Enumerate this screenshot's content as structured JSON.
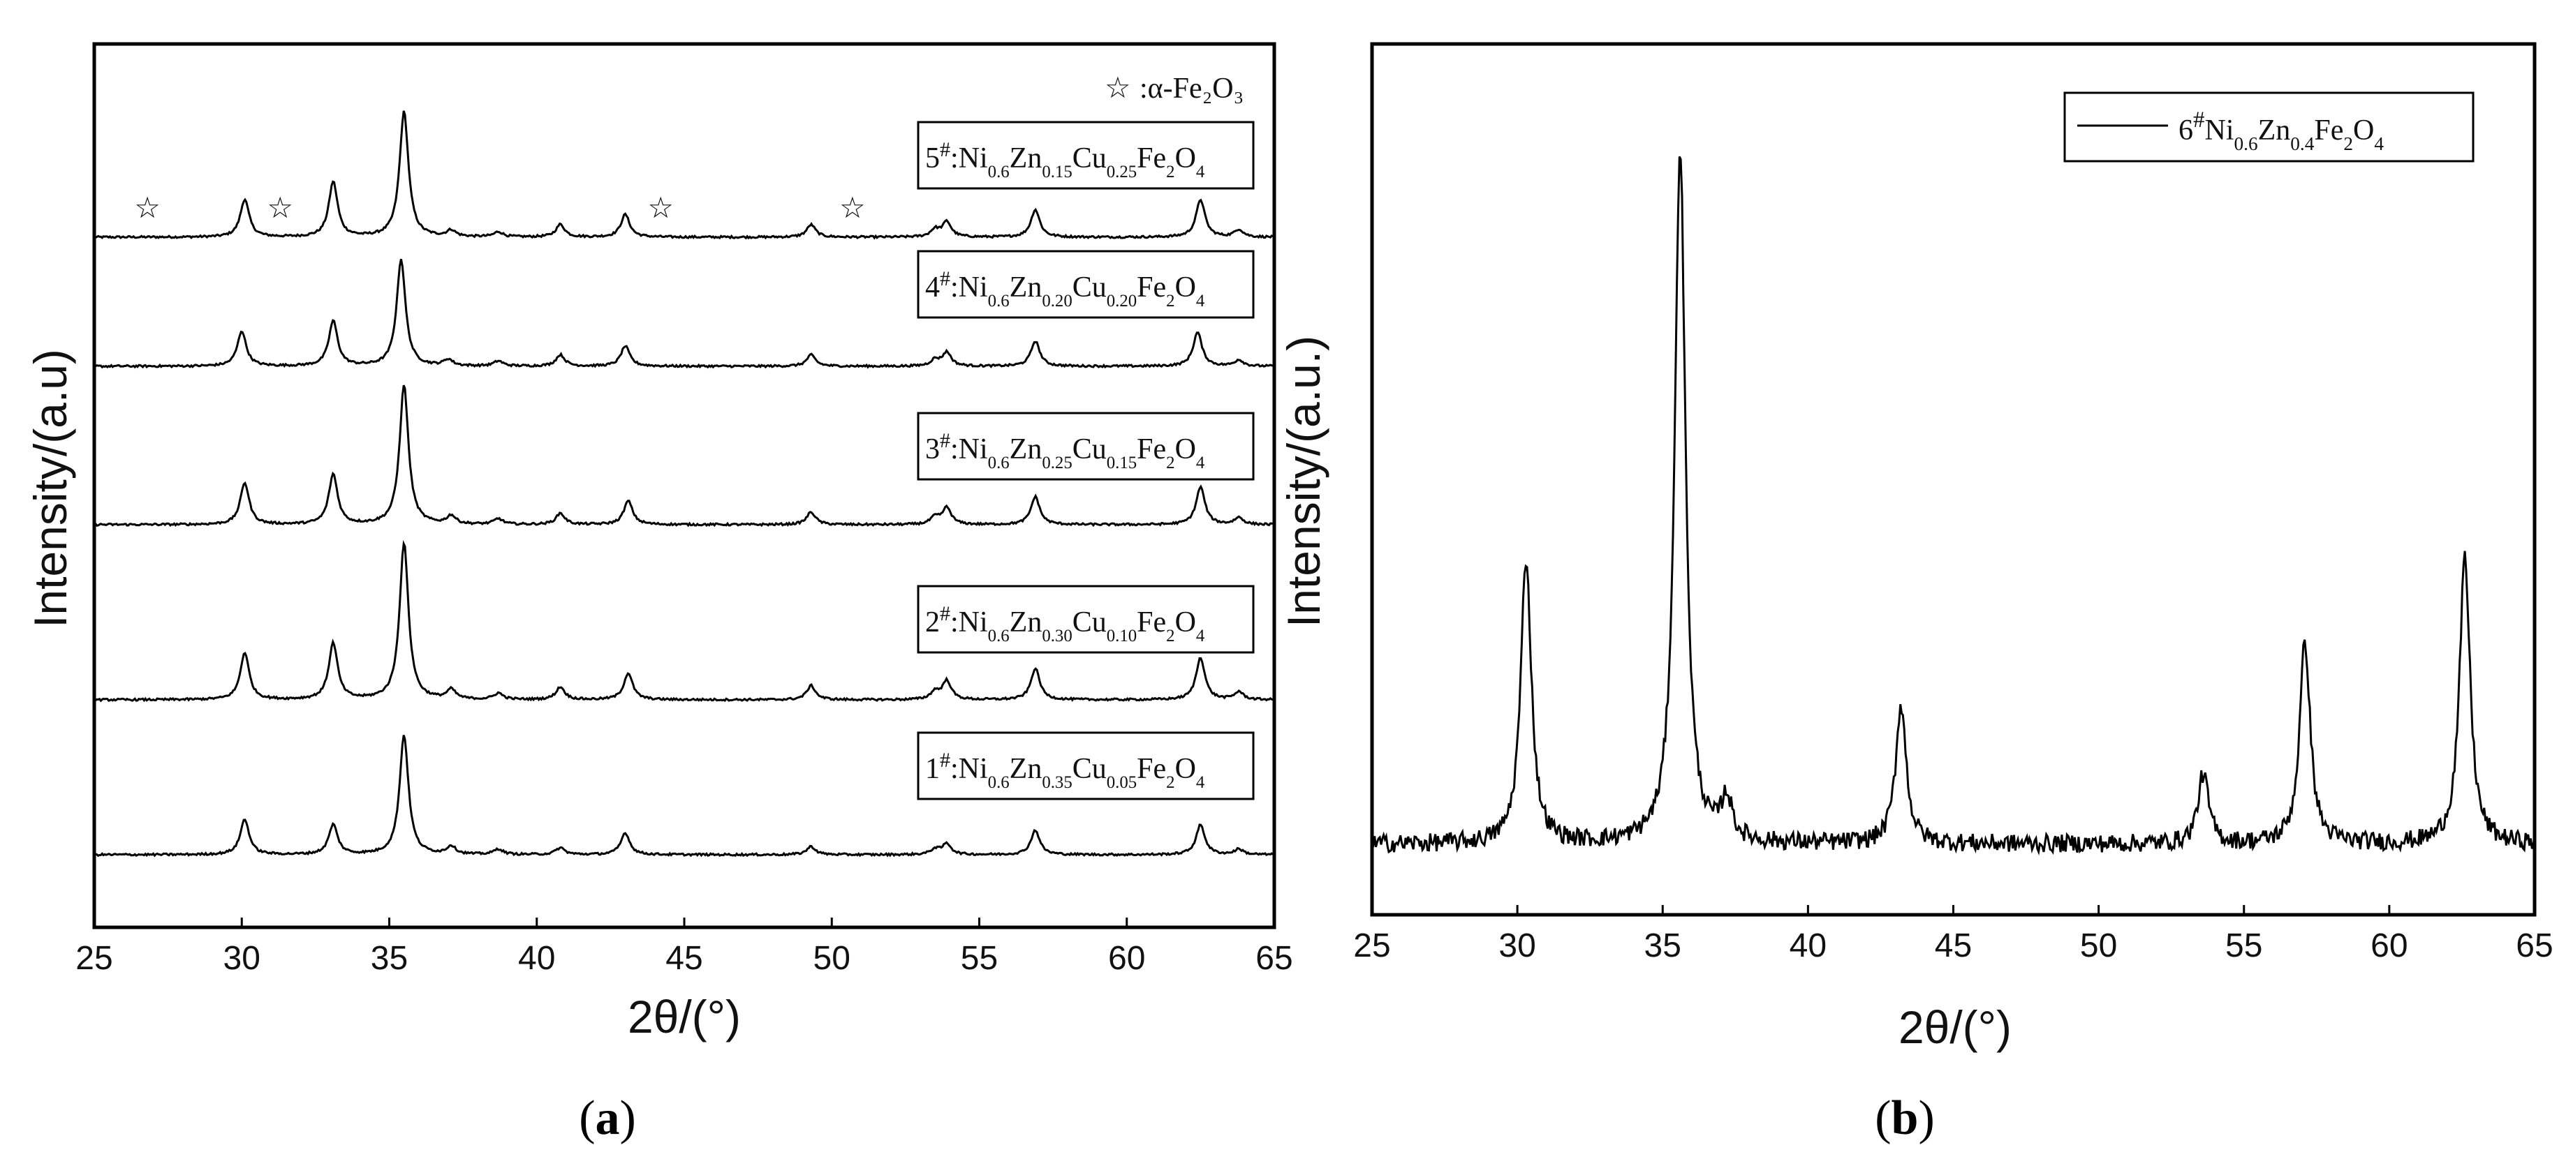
{
  "chart_data": [
    {
      "type": "line",
      "panel_label": "a",
      "xlabel": "2θ/(°)",
      "ylabel": "Intensity/(a.u)",
      "xlim": [
        25,
        65
      ],
      "x_ticks": [
        "25",
        "30",
        "35",
        "40",
        "45",
        "50",
        "55",
        "60",
        "65"
      ],
      "stacked_offsets": true,
      "marker_legend": {
        "symbol": "☆",
        "label": ":α-Fe₂O₃"
      },
      "marker_positions_2theta": [
        26.8,
        31.3,
        44.2,
        50.7
      ],
      "series": [
        {
          "label": {
            "prefix": "5",
            "hash": "#",
            "formula": [
              [
                "Ni",
                "0.6"
              ],
              [
                "Zn",
                "0.15"
              ],
              [
                "Cu",
                "0.25"
              ],
              [
                "Fe",
                "2"
              ],
              [
                "O",
                "4"
              ]
            ]
          },
          "peaks": [
            [
              30.1,
              0.3
            ],
            [
              33.1,
              0.44
            ],
            [
              35.5,
              1.0
            ],
            [
              37.1,
              0.05
            ],
            [
              38.7,
              0.04
            ],
            [
              40.8,
              0.1
            ],
            [
              43.0,
              0.18
            ],
            [
              49.3,
              0.1
            ],
            [
              53.5,
              0.06
            ],
            [
              53.9,
              0.12
            ],
            [
              56.9,
              0.22
            ],
            [
              62.5,
              0.3
            ],
            [
              63.8,
              0.06
            ]
          ]
        },
        {
          "label": {
            "prefix": "4",
            "hash": "#",
            "formula": [
              [
                "Ni",
                "0.6"
              ],
              [
                "Zn",
                "0.20"
              ],
              [
                "Cu",
                "0.20"
              ],
              [
                "Fe",
                "2"
              ],
              [
                "O",
                "4"
              ]
            ]
          },
          "peaks": [
            [
              30.0,
              0.28
            ],
            [
              33.1,
              0.36
            ],
            [
              35.4,
              0.85
            ],
            [
              37.0,
              0.05
            ],
            [
              38.7,
              0.04
            ],
            [
              40.8,
              0.09
            ],
            [
              43.0,
              0.16
            ],
            [
              49.3,
              0.09
            ],
            [
              53.5,
              0.05
            ],
            [
              53.9,
              0.11
            ],
            [
              56.9,
              0.2
            ],
            [
              62.4,
              0.27
            ],
            [
              63.8,
              0.05
            ]
          ]
        },
        {
          "label": {
            "prefix": "3",
            "hash": "#",
            "formula": [
              [
                "Ni",
                "0.6"
              ],
              [
                "Zn",
                "0.25"
              ],
              [
                "Cu",
                "0.15"
              ],
              [
                "Fe",
                "2"
              ],
              [
                "O",
                "4"
              ]
            ]
          },
          "peaks": [
            [
              30.1,
              0.3
            ],
            [
              33.1,
              0.36
            ],
            [
              35.5,
              1.0
            ],
            [
              37.1,
              0.06
            ],
            [
              38.7,
              0.04
            ],
            [
              40.8,
              0.08
            ],
            [
              43.1,
              0.17
            ],
            [
              49.3,
              0.09
            ],
            [
              53.5,
              0.05
            ],
            [
              53.9,
              0.12
            ],
            [
              56.9,
              0.2
            ],
            [
              62.5,
              0.27
            ],
            [
              63.8,
              0.05
            ]
          ]
        },
        {
          "label": {
            "prefix": "2",
            "hash": "#",
            "formula": [
              [
                "Ni",
                "0.6"
              ],
              [
                "Zn",
                "0.30"
              ],
              [
                "Cu",
                "0.10"
              ],
              [
                "Fe",
                "2"
              ],
              [
                "O",
                "4"
              ]
            ]
          },
          "peaks": [
            [
              30.1,
              0.3
            ],
            [
              33.1,
              0.36
            ],
            [
              35.5,
              1.0
            ],
            [
              37.1,
              0.06
            ],
            [
              38.7,
              0.04
            ],
            [
              40.8,
              0.08
            ],
            [
              43.1,
              0.17
            ],
            [
              49.3,
              0.09
            ],
            [
              53.5,
              0.05
            ],
            [
              53.9,
              0.12
            ],
            [
              56.9,
              0.2
            ],
            [
              62.5,
              0.27
            ],
            [
              63.8,
              0.05
            ]
          ]
        },
        {
          "label": {
            "prefix": "1",
            "hash": "#",
            "formula": [
              [
                "Ni",
                "0.6"
              ],
              [
                "Zn",
                "0.35"
              ],
              [
                "Cu",
                "0.05"
              ],
              [
                "Fe",
                "2"
              ],
              [
                "O",
                "4"
              ]
            ]
          },
          "peaks": [
            [
              30.1,
              0.26
            ],
            [
              33.1,
              0.22
            ],
            [
              35.5,
              0.88
            ],
            [
              37.1,
              0.06
            ],
            [
              38.7,
              0.04
            ],
            [
              40.8,
              0.05
            ],
            [
              43.0,
              0.16
            ],
            [
              49.3,
              0.06
            ],
            [
              53.5,
              0.04
            ],
            [
              53.9,
              0.08
            ],
            [
              56.9,
              0.18
            ],
            [
              62.5,
              0.22
            ],
            [
              63.8,
              0.04
            ]
          ]
        }
      ]
    },
    {
      "type": "line",
      "panel_label": "b",
      "xlabel": "2θ/(°)",
      "ylabel": "Intensity/(a.u.)",
      "xlim": [
        25,
        65
      ],
      "x_ticks": [
        "25",
        "30",
        "35",
        "40",
        "45",
        "50",
        "55",
        "60",
        "65"
      ],
      "series": [
        {
          "label": {
            "prefix": "6",
            "hash": "#",
            "formula": [
              [
                "Ni",
                "0.6"
              ],
              [
                "Zn",
                "0.4"
              ],
              [
                "Fe",
                "2"
              ],
              [
                "O",
                "4"
              ]
            ]
          },
          "peaks": [
            [
              30.3,
              0.41
            ],
            [
              35.6,
              1.0
            ],
            [
              37.2,
              0.06
            ],
            [
              43.2,
              0.2
            ],
            [
              53.6,
              0.1
            ],
            [
              57.1,
              0.29
            ],
            [
              62.6,
              0.41
            ]
          ]
        }
      ]
    }
  ],
  "captions": [
    "a",
    "b"
  ]
}
